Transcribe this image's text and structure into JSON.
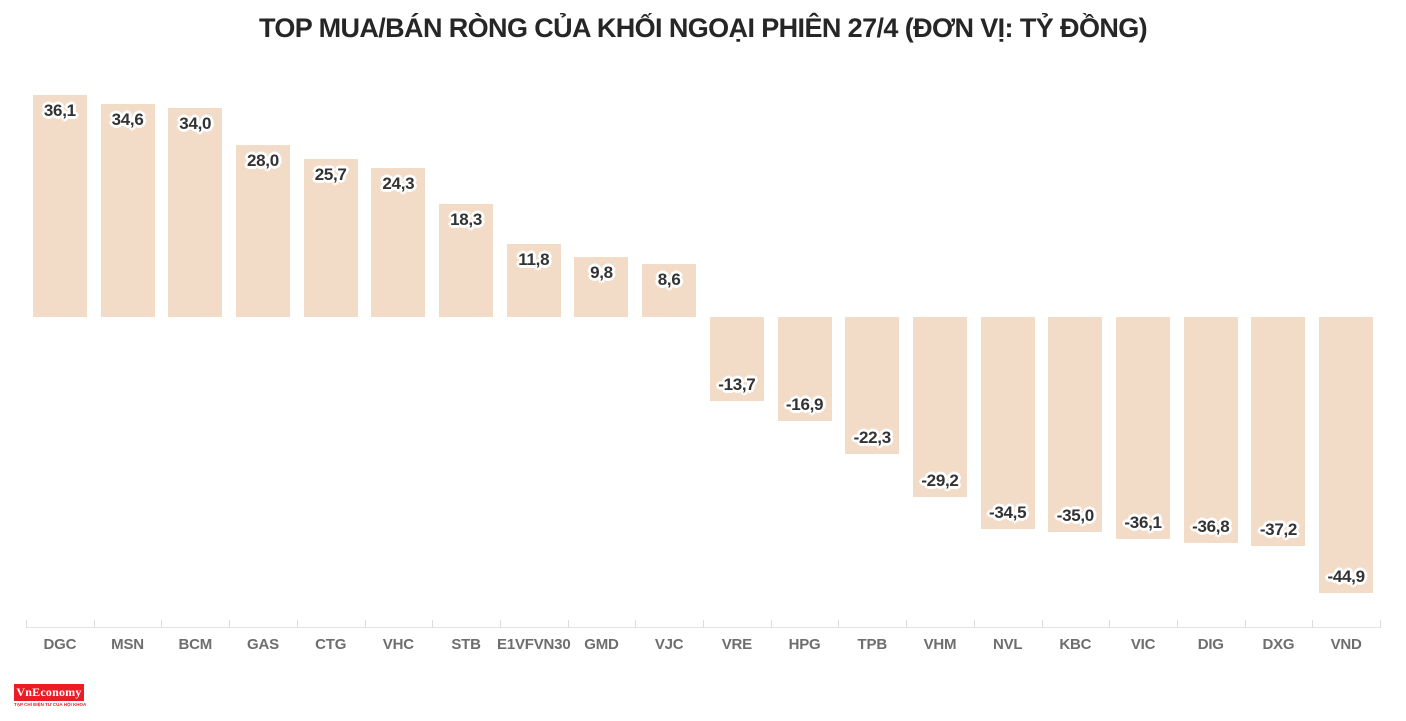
{
  "chart_data": {
    "type": "bar",
    "title": "TOP MUA/BÁN RÒNG CỦA KHỐI NGOẠI PHIÊN 27/4 (ĐƠN VỊ: TỶ ĐỒNG)",
    "unit": "tỷ đồng",
    "categories": [
      "DGC",
      "MSN",
      "BCM",
      "GAS",
      "CTG",
      "VHC",
      "STB",
      "E1VFVN30",
      "GMD",
      "VJC",
      "VRE",
      "HPG",
      "TPB",
      "VHM",
      "NVL",
      "KBC",
      "VIC",
      "DIG",
      "DXG",
      "VND"
    ],
    "values": [
      36.1,
      34.6,
      34.0,
      28.0,
      25.7,
      24.3,
      18.3,
      11.8,
      9.8,
      8.6,
      -13.7,
      -16.9,
      -22.3,
      -29.2,
      -34.5,
      -35.0,
      -36.1,
      -36.8,
      -37.2,
      -44.9
    ],
    "value_labels": [
      "36,1",
      "34,6",
      "34,0",
      "28,0",
      "25,7",
      "24,3",
      "18,3",
      "11,8",
      "9,8",
      "8,6",
      "-13,7",
      "-16,9",
      "-22,3",
      "-29,2",
      "-34,5",
      "-35,0",
      "-36,1",
      "-36,8",
      "-37,2",
      "-44,9"
    ],
    "xlabel": "",
    "ylabel": "",
    "grid": false,
    "y_axis_visible": false,
    "legend": null,
    "decimal_separator": ",",
    "colors": {
      "background": "#FFFFFF",
      "bar_fill": "#F2DCC7",
      "value_label": "#333333",
      "value_label_outline": "#FFFFFF",
      "category_label": "#6E6E6E",
      "axis_line": "#E3E3E3",
      "axis_tick": "#DCDCDC",
      "title": "#262626"
    }
  },
  "branding": {
    "logo_text": "VnEconomy",
    "logo_bg": "#EC1C24",
    "logo_text_color": "#FFFFFF",
    "tagline": "TẠP CHÍ ĐIỆN TỬ CỦA HỘI KHOA HỌC KINH TẾ VIỆT NAM",
    "tagline_color": "#EC1C24"
  }
}
